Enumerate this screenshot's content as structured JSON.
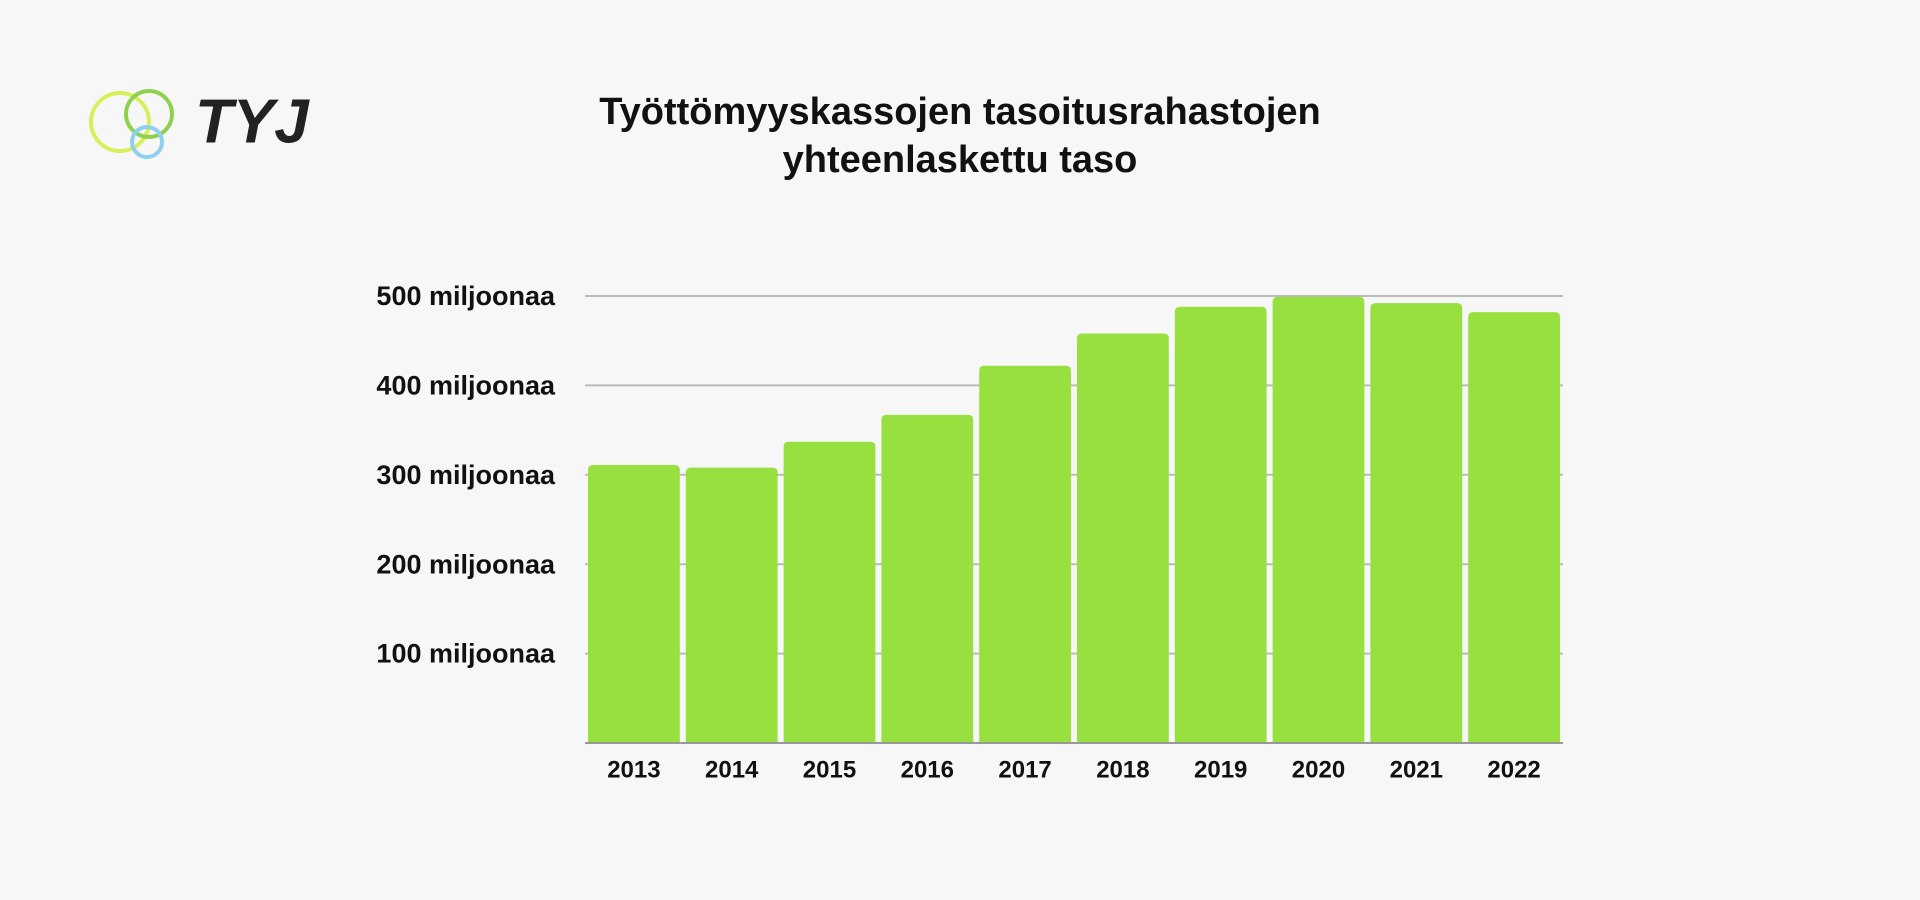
{
  "logo": "TYJ",
  "chart_data": {
    "type": "bar",
    "title": "Työttömyyskassojen tasoitusrahastojen yhteenlaskettu taso",
    "categories": [
      "2013",
      "2014",
      "2015",
      "2016",
      "2017",
      "2018",
      "2019",
      "2020",
      "2021",
      "2022"
    ],
    "values": [
      311,
      308,
      337,
      367,
      422,
      458,
      488,
      499,
      492,
      482
    ],
    "color": "#98df40",
    "ylim": [
      0,
      500
    ],
    "yticks": [
      {
        "value": 100,
        "label": "100 miljoonaa"
      },
      {
        "value": 200,
        "label": "200 miljoonaa"
      },
      {
        "value": 300,
        "label": "300 miljoonaa"
      },
      {
        "value": 400,
        "label": "400 miljoonaa"
      },
      {
        "value": 500,
        "label": "500 miljoonaa"
      }
    ],
    "grid": true
  }
}
